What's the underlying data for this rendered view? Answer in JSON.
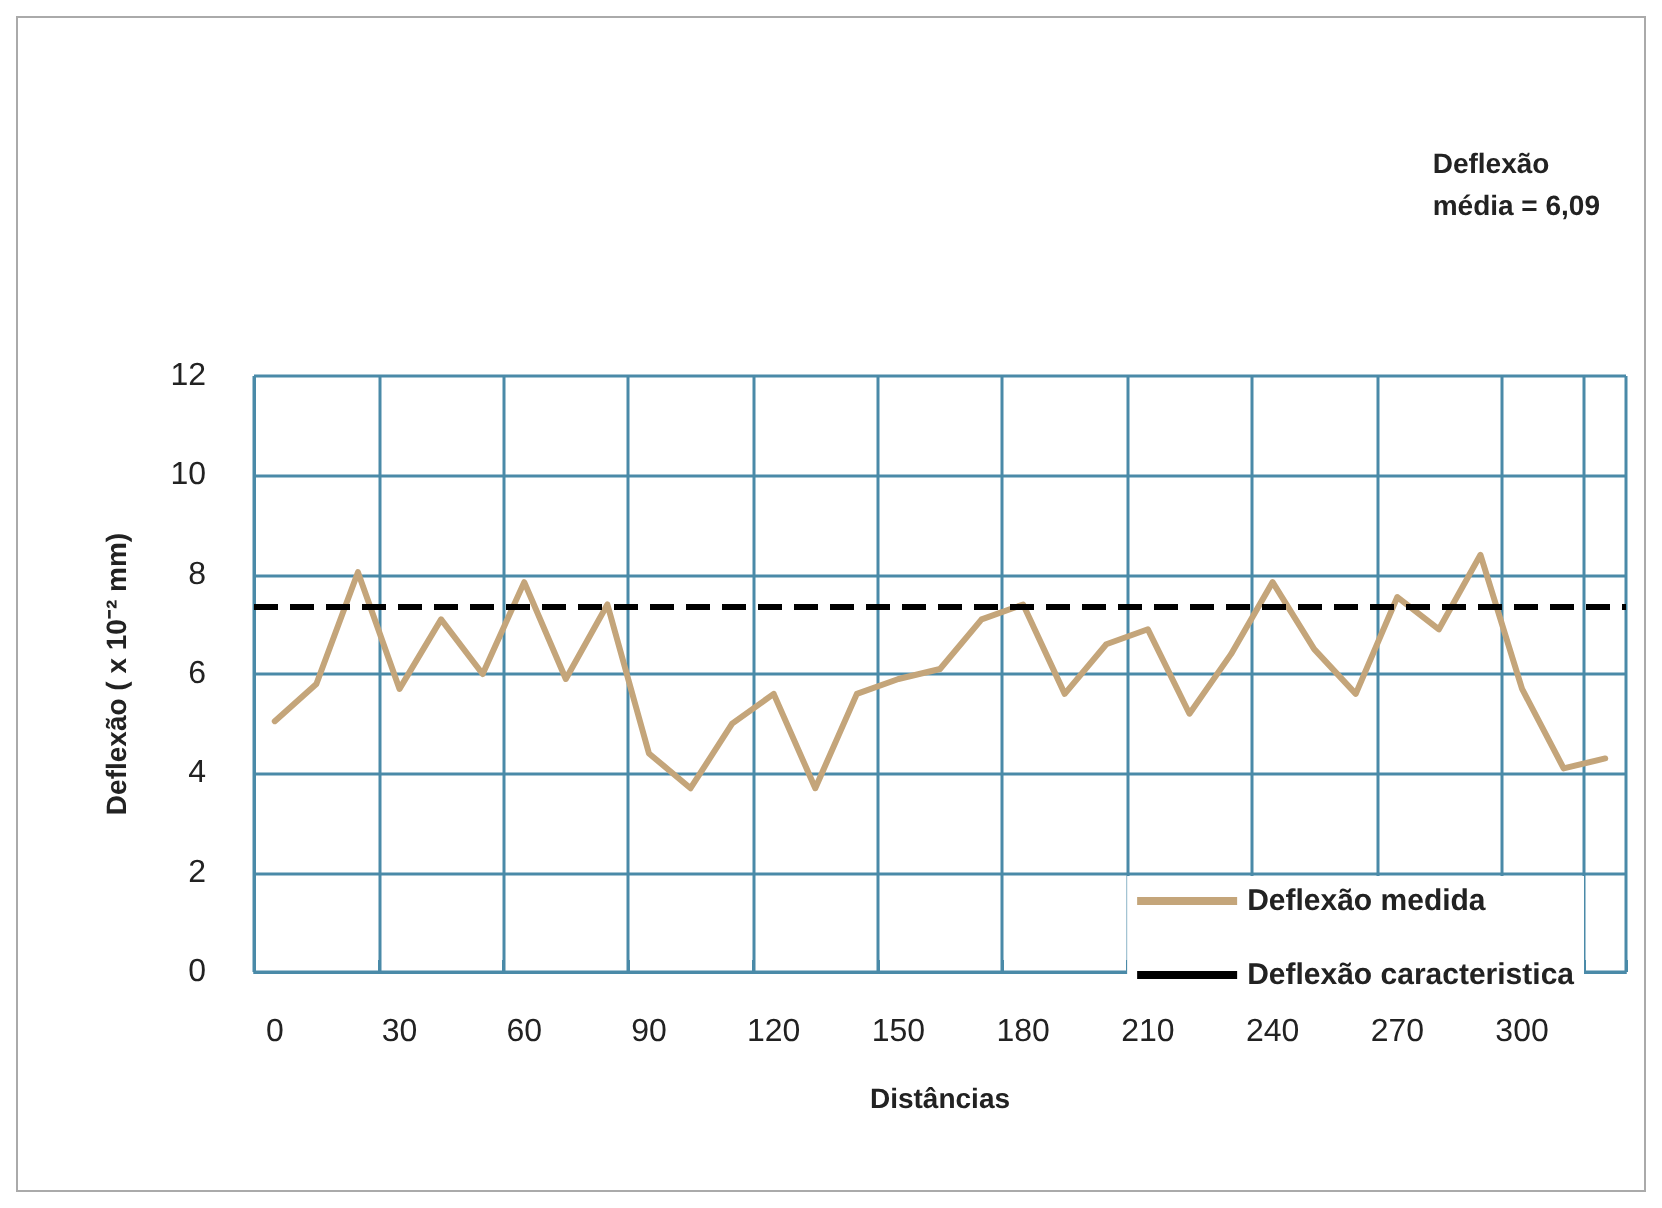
{
  "chart_data": {
    "type": "line",
    "xlabel": "Distâncias",
    "ylabel": "Deflexão ( x 10⁻² mm)",
    "categories": [
      "0",
      null,
      null,
      "30",
      null,
      null,
      "60",
      null,
      null,
      "90",
      null,
      null,
      "120",
      null,
      null,
      "150",
      null,
      null,
      "180",
      null,
      null,
      "210",
      null,
      null,
      "240",
      null,
      null,
      "270",
      null,
      null,
      "300",
      null,
      null
    ],
    "series": [
      {
        "name": "Deflexão medida",
        "color": "#c4a57a",
        "values": [
          5.05,
          5.8,
          8.05,
          5.7,
          7.1,
          6.0,
          7.85,
          5.9,
          7.4,
          4.4,
          3.7,
          5.0,
          5.6,
          3.7,
          5.6,
          5.9,
          6.1,
          7.1,
          7.4,
          5.6,
          6.6,
          6.9,
          5.2,
          6.4,
          7.85,
          6.5,
          5.6,
          7.55,
          6.9,
          8.4,
          5.7,
          4.1,
          4.3
        ]
      }
    ],
    "ref_lines": [
      {
        "axis": "y",
        "value": 7.35,
        "label": "Deflexão caracteristica",
        "color": "#000000",
        "line_style": "dashed"
      }
    ],
    "annotations": [
      "Deflexão\nmédia = 6,09"
    ],
    "ylim": [
      0,
      12
    ],
    "yticks": [
      0,
      2,
      4,
      6,
      8,
      10,
      12
    ],
    "grid": true,
    "legend": "bottom right",
    "marker": "none",
    "line_style": "solid"
  }
}
